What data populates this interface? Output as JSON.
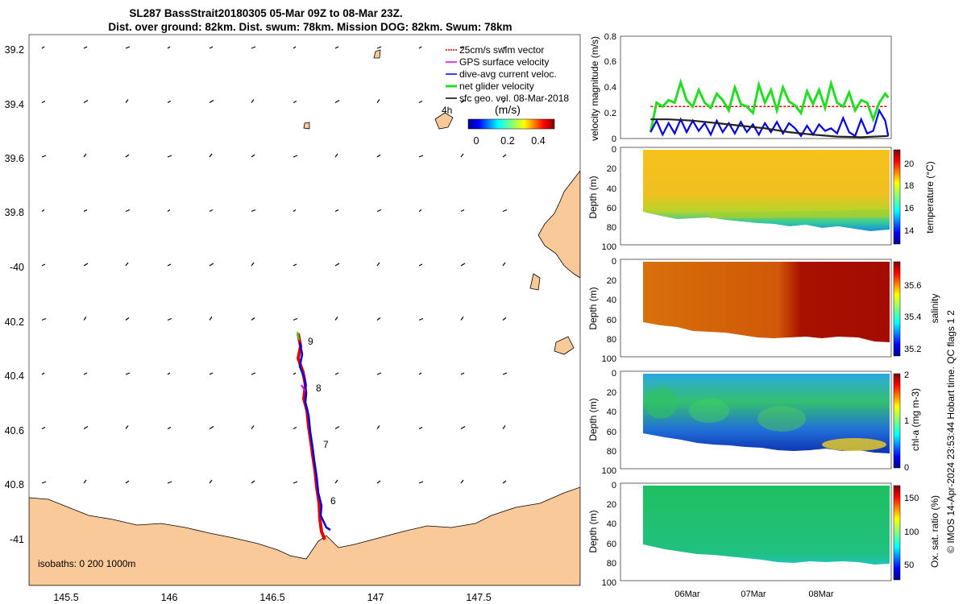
{
  "header": {
    "title_line1": "SL287 BassStrait20180305 05-Mar 09Z to 08-Mar 23Z.",
    "title_line2": "Dist. over ground: 82km. Dist. swum: 78km. Mission DOG: 82km. Swum: 78km"
  },
  "map": {
    "lat_ticks": [
      "39.2",
      "39.4",
      "39.6",
      "39.8",
      "-40",
      "40.2",
      "40.4",
      "40.6",
      "40.8",
      "-41"
    ],
    "lon_ticks": [
      "145.5",
      "146",
      "146.5",
      "147",
      "147.5"
    ],
    "isobaths_label": "isobaths: 0   200  1000m",
    "day_labels": [
      "9",
      "8",
      "7",
      "6"
    ],
    "time_label": "4h",
    "legend": [
      {
        "label": "25cm/s swim vector",
        "color": "#e00000"
      },
      {
        "label": "GPS surface velocity",
        "color": "#e000e0"
      },
      {
        "label": "dive-avg current veloc.",
        "color": "#0000e0"
      },
      {
        "label": "net glider velocity",
        "color": "#22dd22"
      },
      {
        "label": "sfc geo. vel. 08-Mar-2018",
        "color": "#000000"
      }
    ],
    "colorbar": {
      "unit": "(m/s)",
      "ticks": [
        "0",
        "0.2",
        "0.4"
      ]
    },
    "colors": {
      "land": "#f9c99a",
      "track": "#e00000",
      "current": "#0000e0"
    }
  },
  "chart_data": [
    {
      "type": "line",
      "title": "",
      "ylabel": "velocity magnitude (m/s)",
      "ylim": [
        0,
        0.8
      ],
      "yticks": [
        "0",
        "0.2",
        "0.4",
        "0.6",
        "0.8"
      ],
      "xlim_days": [
        0,
        4.5
      ],
      "series": [
        {
          "name": "25cm/s swim vector",
          "color": "#e00000",
          "x": [
            0.5,
            4.45
          ],
          "values": [
            0.25,
            0.25
          ]
        },
        {
          "name": "net glider velocity",
          "color": "#22dd22",
          "x": [
            0.5,
            0.6,
            0.7,
            0.8,
            0.9,
            1.0,
            1.1,
            1.2,
            1.3,
            1.4,
            1.5,
            1.6,
            1.7,
            1.8,
            1.9,
            2.0,
            2.1,
            2.2,
            2.3,
            2.4,
            2.5,
            2.6,
            2.7,
            2.8,
            2.9,
            3.0,
            3.1,
            3.2,
            3.3,
            3.4,
            3.5,
            3.6,
            3.7,
            3.8,
            3.9,
            4.0,
            4.1,
            4.2,
            4.3,
            4.4,
            4.45
          ],
          "values": [
            0.05,
            0.28,
            0.25,
            0.3,
            0.28,
            0.44,
            0.3,
            0.25,
            0.38,
            0.28,
            0.24,
            0.35,
            0.3,
            0.22,
            0.4,
            0.27,
            0.25,
            0.2,
            0.42,
            0.28,
            0.38,
            0.22,
            0.4,
            0.29,
            0.26,
            0.2,
            0.37,
            0.27,
            0.38,
            0.24,
            0.43,
            0.28,
            0.25,
            0.36,
            0.22,
            0.3,
            0.28,
            0.15,
            0.28,
            0.35,
            0.32
          ]
        },
        {
          "name": "dive-avg current veloc.",
          "color": "#0000e0",
          "x": [
            0.5,
            0.6,
            0.7,
            0.8,
            0.9,
            1.0,
            1.1,
            1.2,
            1.3,
            1.4,
            1.5,
            1.6,
            1.7,
            1.8,
            1.9,
            2.0,
            2.1,
            2.2,
            2.3,
            2.4,
            2.5,
            2.6,
            2.7,
            2.8,
            2.9,
            3.0,
            3.1,
            3.2,
            3.3,
            3.4,
            3.5,
            3.6,
            3.7,
            3.8,
            3.9,
            4.0,
            4.1,
            4.2,
            4.3,
            4.4,
            4.45
          ],
          "values": [
            0.05,
            0.14,
            0.03,
            0.12,
            0.04,
            0.15,
            0.05,
            0.14,
            0.06,
            0.12,
            0.03,
            0.14,
            0.05,
            0.12,
            0.04,
            0.13,
            0.05,
            0.11,
            0.03,
            0.12,
            0.05,
            0.13,
            0.04,
            0.12,
            0.08,
            0.02,
            0.1,
            0.03,
            0.11,
            0.06,
            0.08,
            0.04,
            0.16,
            0.05,
            0.02,
            0.15,
            0.04,
            0.06,
            0.22,
            0.14,
            0.02
          ]
        },
        {
          "name": "sfc geo. vel.",
          "color": "#222222",
          "x": [
            0.5,
            0.8,
            1.2,
            1.6,
            2.0,
            2.4,
            2.8,
            3.2,
            3.6,
            4.0,
            4.45
          ],
          "values": [
            0.15,
            0.15,
            0.14,
            0.12,
            0.1,
            0.08,
            0.05,
            0.03,
            0.015,
            0.01,
            0.02
          ]
        }
      ]
    },
    {
      "type": "heatmap",
      "ylabel": "Depth (m)",
      "clabel": "temperature (°C)",
      "ylim": [
        0,
        100
      ],
      "yticks": [
        "0",
        "20",
        "40",
        "60",
        "80",
        "100"
      ],
      "clim": [
        13,
        21
      ],
      "cticks": [
        "14",
        "16",
        "18",
        "20"
      ]
    },
    {
      "type": "heatmap",
      "ylabel": "Depth (m)",
      "clabel": "salinity",
      "ylim": [
        0,
        100
      ],
      "yticks": [
        "0",
        "20",
        "40",
        "60",
        "80",
        "100"
      ],
      "clim": [
        35.1,
        35.7
      ],
      "cticks": [
        "35.2",
        "35.4",
        "35.6"
      ]
    },
    {
      "type": "heatmap",
      "ylabel": "Depth (m)",
      "clabel": "chl-a (mg m-3)",
      "ylim": [
        0,
        100
      ],
      "yticks": [
        "0",
        "20",
        "40",
        "60",
        "80",
        "100"
      ],
      "clim": [
        0,
        2
      ],
      "cticks": [
        "0",
        "1",
        "2"
      ]
    },
    {
      "type": "heatmap",
      "ylabel": "Depth (m)",
      "clabel": "Ox. sat. ratio (%)",
      "ylim": [
        0,
        100
      ],
      "yticks": [
        "0",
        "20",
        "40",
        "60",
        "80",
        "100"
      ],
      "clim": [
        30,
        170
      ],
      "cticks": [
        "50",
        "100",
        "150"
      ],
      "xticks": [
        "06Mar",
        "07Mar",
        "08Mar"
      ]
    }
  ],
  "footer": {
    "credit": "© IMOS 14-Apr-2024 23:53:44 Hobart time. QC flags 1  2"
  }
}
